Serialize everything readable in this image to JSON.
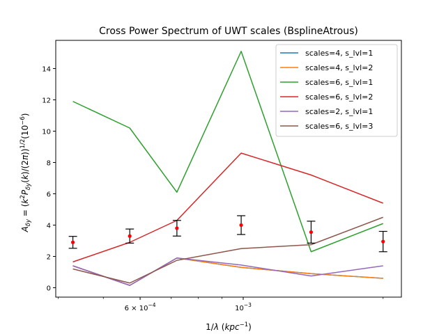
{
  "chart_data": {
    "type": "line",
    "title": "Cross Power Spectrum of UWT scales (BsplineAtrous)",
    "xlabel": "1/λ (kpc⁻¹)",
    "ylabel": "Aδy = (k²Pδy(k)/(2π))¹ᐟ²(10⁻⁶)",
    "xscale": "log",
    "xlim": [
      0.000395,
      0.00219
    ],
    "ylim": [
      -0.6,
      15.8
    ],
    "grid": false,
    "legend_position": "top-right",
    "x": [
      0.00043,
      0.00057,
      0.00072,
      0.00099,
      0.0014,
      0.002
    ],
    "x_major_ticks": [
      {
        "value": 0.0006,
        "label": "6 × 10⁻⁴"
      },
      {
        "value": 0.001,
        "label": "10⁻³"
      }
    ],
    "x_minor_ticks": [
      0.0004,
      0.0005,
      0.0007,
      0.0008,
      0.0009,
      0.002
    ],
    "y_ticks": [
      0,
      2,
      4,
      6,
      8,
      10,
      12,
      14
    ],
    "series": [
      {
        "name": "scales=4, s_lvl=1",
        "color": "#1f77b4",
        "values": [
          1.4,
          0.15,
          1.9,
          1.3,
          0.9,
          0.6
        ]
      },
      {
        "name": "scales=4, s_lvl=2",
        "color": "#ff7f0e",
        "values": [
          1.4,
          0.15,
          1.9,
          1.3,
          0.9,
          0.6
        ]
      },
      {
        "name": "scales=6, s_lvl=1",
        "color": "#2ca02c",
        "values": [
          11.9,
          10.2,
          6.1,
          15.1,
          2.3,
          4.1
        ]
      },
      {
        "name": "scales=6, s_lvl=2",
        "color": "#d62728",
        "values": [
          1.65,
          2.9,
          4.3,
          8.6,
          7.2,
          5.4
        ]
      },
      {
        "name": "scales=2, s_lvl=1",
        "color": "#9467bd",
        "values": [
          1.4,
          0.15,
          1.9,
          1.45,
          0.75,
          1.4
        ]
      },
      {
        "name": "scales=6, s_lvl=3",
        "color": "#8c564b",
        "values": [
          1.2,
          0.3,
          1.75,
          2.5,
          2.75,
          4.5
        ]
      }
    ],
    "errorbars": {
      "marker_color": "#ff0000",
      "bar_color": "#000000",
      "points": [
        {
          "x": 0.00043,
          "y": 2.9,
          "err": 0.38
        },
        {
          "x": 0.00057,
          "y": 3.3,
          "err": 0.45
        },
        {
          "x": 0.00072,
          "y": 3.8,
          "err": 0.5
        },
        {
          "x": 0.00099,
          "y": 4.0,
          "err": 0.6
        },
        {
          "x": 0.0014,
          "y": 3.55,
          "err": 0.7
        },
        {
          "x": 0.002,
          "y": 2.95,
          "err": 0.65
        }
      ]
    }
  }
}
